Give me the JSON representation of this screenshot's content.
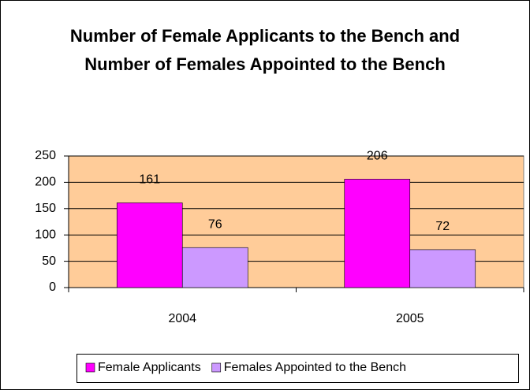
{
  "chart_data": {
    "type": "bar",
    "title": "Number of Female Applicants to the Bench and Number of Females Appointed to the Bench",
    "categories": [
      "2004",
      "2005"
    ],
    "series": [
      {
        "name": "Female Applicants",
        "color": "#ff00ff",
        "values": [
          161,
          206
        ]
      },
      {
        "name": "Females Appointed to the Bench",
        "color": "#cc99ff",
        "values": [
          76,
          72
        ]
      }
    ],
    "ylim": [
      0,
      250
    ],
    "yticks": [
      0,
      50,
      100,
      150,
      200,
      250
    ],
    "grid": true,
    "plot_background": "#ffcc99",
    "legend": "bottom"
  }
}
